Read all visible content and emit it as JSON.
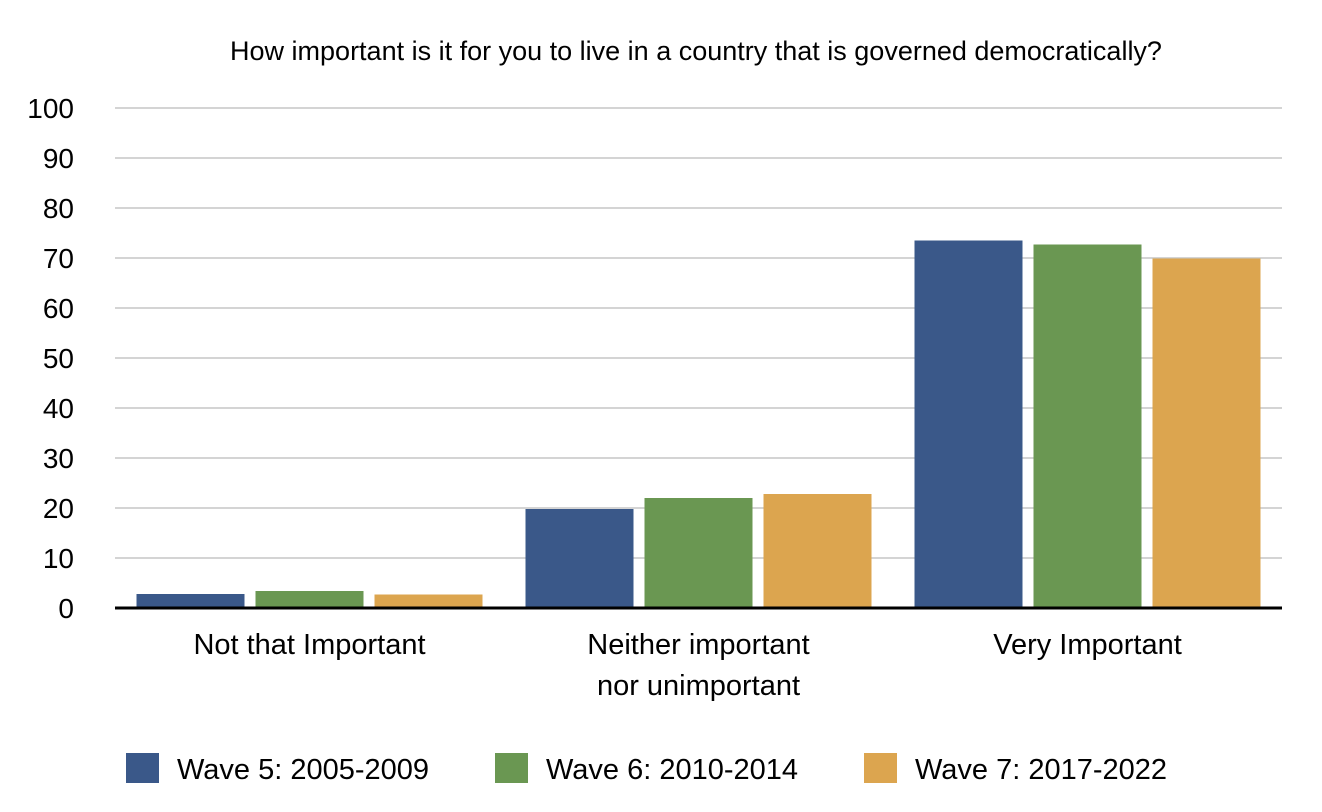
{
  "chart_data": {
    "type": "bar",
    "title": "How important is it for you to live in a country that is governed democratically?",
    "xlabel": "",
    "ylabel": "",
    "ylim": [
      0,
      100
    ],
    "yticks": [
      0,
      10,
      20,
      30,
      40,
      50,
      60,
      70,
      80,
      90,
      100
    ],
    "categories": [
      [
        "Not that Important"
      ],
      [
        "Neither important",
        "nor unimportant"
      ],
      [
        "Very Important"
      ]
    ],
    "series": [
      {
        "name": "Wave 5: 2005-2009",
        "color": "#3a5889",
        "values": [
          2.8,
          19.8,
          73.5
        ]
      },
      {
        "name": "Wave 6: 2010-2014",
        "color": "#6a9752",
        "values": [
          3.4,
          22.0,
          72.7
        ]
      },
      {
        "name": "Wave 7: 2017-2022",
        "color": "#dca54f",
        "values": [
          2.7,
          22.8,
          69.9
        ]
      }
    ],
    "grid": true,
    "legend_position": "bottom"
  }
}
